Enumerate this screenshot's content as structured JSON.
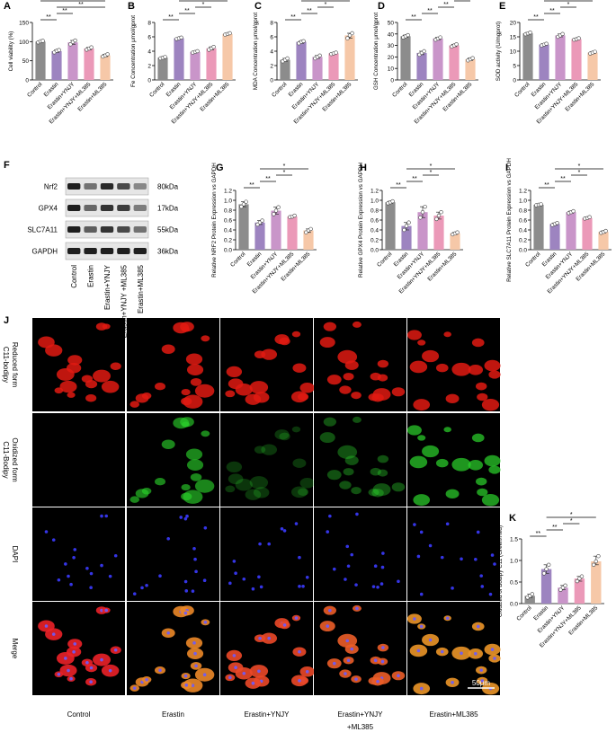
{
  "colors": {
    "control": "#8c8c8c",
    "erastin": "#9d84c0",
    "ynjy": "#c995c9",
    "ynjy_ml385": "#eb99b8",
    "ml385": "#f6c8a8"
  },
  "groups": [
    "Control",
    "Erastin",
    "Erastin+YNJY",
    "Erastin+YNJY+ML385",
    "Erastin+ML385"
  ],
  "wb_groups": [
    "Control",
    "Erastin",
    "Erastin+YNJY",
    "Erastin+YNJY +ML385",
    "Erastin+ML385"
  ],
  "wb": {
    "letter": "F",
    "bands": [
      {
        "protein": "Nrf2",
        "kda": "80kDa",
        "intensity": [
          0.95,
          0.55,
          0.9,
          0.75,
          0.45
        ]
      },
      {
        "protein": "GPX4",
        "kda": "17kDa",
        "intensity": [
          0.95,
          0.6,
          0.85,
          0.8,
          0.5
        ]
      },
      {
        "protein": "SLC7A11",
        "kda": "55kDa",
        "intensity": [
          0.95,
          0.65,
          0.85,
          0.75,
          0.55
        ]
      },
      {
        "protein": "GAPDH",
        "kda": "36kDa",
        "intensity": [
          0.95,
          0.95,
          0.95,
          0.95,
          0.95
        ]
      }
    ]
  },
  "micro": {
    "letter": "J",
    "rows": [
      {
        "label": "Reduced form C11-bodipy",
        "color": "red"
      },
      {
        "label": "Oxidized form C11-Bodipy",
        "color": "green"
      },
      {
        "label": "DAPI",
        "color": "blue"
      },
      {
        "label": "Merge",
        "color": "merge"
      }
    ],
    "columns": [
      "Control",
      "Erastin",
      "Erastin+YNJY",
      "Erastin+YNJY +ML385",
      "Erastin+ML385"
    ],
    "green_intensity": [
      0.02,
      0.75,
      0.3,
      0.45,
      0.85
    ],
    "scale_bar": "50μm"
  },
  "chart_data": [
    {
      "id": "A",
      "type": "bar",
      "ylabel": "Cell viability  (%)",
      "ylim": [
        0,
        150
      ],
      "ticks": [
        0,
        50,
        100,
        150
      ],
      "values": [
        100,
        75,
        98,
        82,
        64
      ],
      "points": [
        [
          98,
          101,
          102
        ],
        [
          72,
          76,
          78
        ],
        [
          93,
          99,
          103
        ],
        [
          79,
          82,
          85
        ],
        [
          61,
          64,
          67
        ]
      ],
      "sig": [
        [
          0,
          1,
          "**"
        ],
        [
          1,
          2,
          "**"
        ],
        [
          1,
          4,
          "**"
        ],
        [
          0,
          4,
          "**"
        ]
      ]
    },
    {
      "id": "B",
      "type": "bar",
      "ylabel": "Fe Concentration  μmol/gprot",
      "ylim": [
        0,
        8
      ],
      "ticks": [
        0,
        2,
        4,
        6,
        8
      ],
      "values": [
        3.1,
        5.8,
        3.9,
        4.4,
        6.4
      ],
      "points": [
        [
          3.0,
          3.1,
          3.2
        ],
        [
          5.7,
          5.8,
          5.9
        ],
        [
          3.8,
          3.9,
          4.0
        ],
        [
          4.2,
          4.4,
          4.6
        ],
        [
          6.3,
          6.4,
          6.5
        ]
      ],
      "sig": [
        [
          0,
          1,
          "**"
        ],
        [
          1,
          2,
          "**"
        ],
        [
          2,
          3,
          "*"
        ],
        [
          1,
          4,
          "**"
        ]
      ]
    },
    {
      "id": "C",
      "type": "bar",
      "ylabel": "MDA Concentration  μmol/gprot",
      "ylim": [
        0,
        8
      ],
      "ticks": [
        0,
        2,
        4,
        6,
        8
      ],
      "values": [
        2.8,
        5.3,
        3.2,
        3.7,
        6.2
      ],
      "points": [
        [
          2.6,
          2.8,
          3.0
        ],
        [
          5.1,
          5.3,
          5.4
        ],
        [
          3.0,
          3.2,
          3.4
        ],
        [
          3.6,
          3.7,
          3.8
        ],
        [
          5.8,
          6.2,
          6.5
        ]
      ],
      "sig": [
        [
          0,
          1,
          "**"
        ],
        [
          1,
          2,
          "**"
        ],
        [
          2,
          3,
          "*"
        ],
        [
          1,
          4,
          "*"
        ]
      ]
    },
    {
      "id": "D",
      "type": "bar",
      "ylabel": "GSH Concentration  μmol/gprot",
      "ylim": [
        0,
        50
      ],
      "ticks": [
        0,
        10,
        20,
        30,
        40,
        50
      ],
      "values": [
        38,
        23.5,
        36,
        30,
        18
      ],
      "points": [
        [
          37,
          38,
          39
        ],
        [
          22,
          23.5,
          25
        ],
        [
          35,
          36,
          37
        ],
        [
          29,
          30,
          31
        ],
        [
          17,
          18,
          19
        ]
      ],
      "sig": [
        [
          0,
          1,
          "**"
        ],
        [
          1,
          2,
          "**"
        ],
        [
          2,
          3,
          "**"
        ],
        [
          3,
          4,
          "*"
        ]
      ]
    },
    {
      "id": "E",
      "type": "bar",
      "ylabel": "SOD activity (U/mgprot)",
      "ylim": [
        0,
        20
      ],
      "ticks": [
        0,
        5,
        10,
        15,
        20
      ],
      "values": [
        16.2,
        12.3,
        15.5,
        14.2,
        9.5
      ],
      "points": [
        [
          15.9,
          16.2,
          16.5
        ],
        [
          12.0,
          12.3,
          12.6
        ],
        [
          15.0,
          15.5,
          16.0
        ],
        [
          14.0,
          14.2,
          14.5
        ],
        [
          9.2,
          9.5,
          9.8
        ]
      ],
      "sig": [
        [
          0,
          1,
          "**"
        ],
        [
          1,
          2,
          "**"
        ],
        [
          2,
          3,
          "*"
        ],
        [
          1,
          4,
          "**"
        ]
      ]
    },
    {
      "id": "G",
      "type": "bar",
      "ylabel": "Relative NRF2 Protein Expression vs GAPDH",
      "ylim": [
        0,
        1.2
      ],
      "ticks": [
        0.0,
        0.2,
        0.4,
        0.6,
        0.8,
        1.0,
        1.2
      ],
      "values": [
        0.92,
        0.55,
        0.79,
        0.67,
        0.39
      ],
      "points": [
        [
          0.87,
          0.92,
          0.97
        ],
        [
          0.51,
          0.55,
          0.59
        ],
        [
          0.72,
          0.79,
          0.86
        ],
        [
          0.66,
          0.67,
          0.69
        ],
        [
          0.35,
          0.39,
          0.42
        ]
      ],
      "sig": [
        [
          0,
          1,
          "**"
        ],
        [
          1,
          2,
          "**"
        ],
        [
          2,
          3,
          "*"
        ],
        [
          1,
          4,
          "*"
        ]
      ]
    },
    {
      "id": "H",
      "type": "bar",
      "ylabel": "Relative GPX4 Protein Expression vs GAPDH",
      "ylim": [
        0,
        1.2
      ],
      "ticks": [
        0.0,
        0.2,
        0.4,
        0.6,
        0.8,
        1.0,
        1.2
      ],
      "values": [
        0.96,
        0.48,
        0.76,
        0.69,
        0.33
      ],
      "points": [
        [
          0.94,
          0.96,
          0.98
        ],
        [
          0.4,
          0.48,
          0.55
        ],
        [
          0.65,
          0.76,
          0.87
        ],
        [
          0.62,
          0.69,
          0.76
        ],
        [
          0.31,
          0.33,
          0.35
        ]
      ],
      "sig": [
        [
          0,
          1,
          "**"
        ],
        [
          1,
          2,
          "**"
        ],
        [
          2,
          3,
          "*"
        ],
        [
          1,
          4,
          "*"
        ]
      ]
    },
    {
      "id": "I",
      "type": "bar",
      "ylabel": "Relative SLC7A11 Protein Expression vs GAPDH",
      "ylim": [
        0,
        1.2
      ],
      "ticks": [
        0.0,
        0.2,
        0.4,
        0.6,
        0.8,
        1.0,
        1.2
      ],
      "values": [
        0.91,
        0.52,
        0.76,
        0.64,
        0.36
      ],
      "points": [
        [
          0.9,
          0.91,
          0.92
        ],
        [
          0.5,
          0.52,
          0.54
        ],
        [
          0.74,
          0.76,
          0.78
        ],
        [
          0.63,
          0.64,
          0.66
        ],
        [
          0.34,
          0.36,
          0.38
        ]
      ],
      "sig": [
        [
          0,
          1,
          "**"
        ],
        [
          1,
          2,
          "**"
        ],
        [
          2,
          3,
          "*"
        ],
        [
          1,
          4,
          "*"
        ]
      ]
    },
    {
      "id": "K",
      "type": "bar",
      "ylabel": "Oxidized of Bodipy C11 (Green/Red)",
      "ylim": [
        0,
        1.5
      ],
      "ticks": [
        0.0,
        0.5,
        1.0,
        1.5
      ],
      "values": [
        0.18,
        0.8,
        0.37,
        0.58,
        0.98
      ],
      "points": [
        [
          0.14,
          0.18,
          0.22
        ],
        [
          0.7,
          0.8,
          0.9
        ],
        [
          0.32,
          0.37,
          0.42
        ],
        [
          0.52,
          0.58,
          0.63
        ],
        [
          0.9,
          0.98,
          1.1
        ]
      ],
      "sig": [
        [
          0,
          1,
          "**"
        ],
        [
          1,
          2,
          "**"
        ],
        [
          2,
          3,
          "*"
        ],
        [
          1,
          4,
          "*"
        ]
      ]
    }
  ]
}
